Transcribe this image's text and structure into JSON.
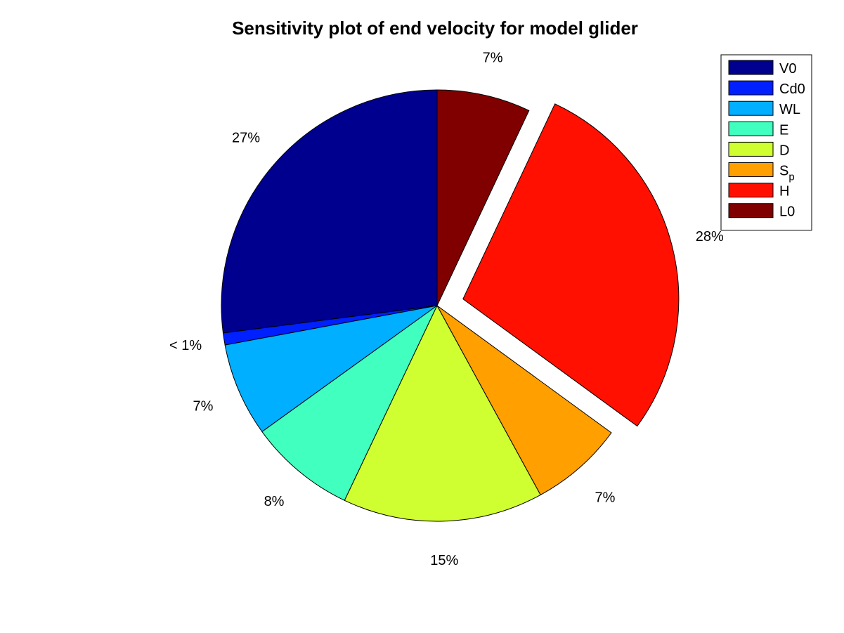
{
  "chart_data": {
    "type": "pie",
    "title": "Sensitivity plot of end velocity for model glider",
    "slices": [
      {
        "label": "V0",
        "legend_main": "V0",
        "legend_sub": "",
        "value": 27,
        "display": "27%",
        "color": "#00008F",
        "exploded": false
      },
      {
        "label": "Cd0",
        "legend_main": "Cd0",
        "legend_sub": "",
        "value": 0.9,
        "display": "< 1%",
        "color": "#0020FF",
        "exploded": false
      },
      {
        "label": "WL",
        "legend_main": "WL",
        "legend_sub": "",
        "value": 7,
        "display": "7%",
        "color": "#00AFFF",
        "exploded": false
      },
      {
        "label": "E",
        "legend_main": "E",
        "legend_sub": "",
        "value": 8,
        "display": "8%",
        "color": "#40FFBF",
        "exploded": false
      },
      {
        "label": "D",
        "legend_main": "D",
        "legend_sub": "",
        "value": 15,
        "display": "15%",
        "color": "#CFFF30",
        "exploded": false
      },
      {
        "label": "Sp",
        "legend_main": "S",
        "legend_sub": "p",
        "value": 7,
        "display": "7%",
        "color": "#FF9F00",
        "exploded": false
      },
      {
        "label": "H",
        "legend_main": "H",
        "legend_sub": "",
        "value": 28,
        "display": "28%",
        "color": "#FF1000",
        "exploded": true
      },
      {
        "label": "L0",
        "legend_main": "L0",
        "legend_sub": "",
        "value": 7,
        "display": "7%",
        "color": "#800000",
        "exploded": false
      }
    ],
    "start": "12 o'clock",
    "direction": "counterclockwise",
    "legend_position": "top-right"
  }
}
